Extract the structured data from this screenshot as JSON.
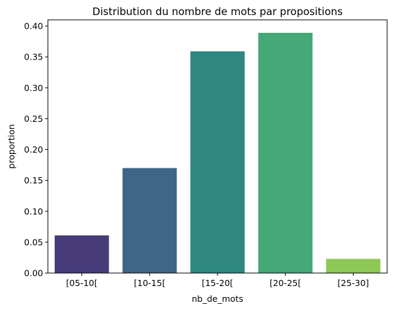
{
  "chart_data": {
    "type": "bar",
    "title": "Distribution du nombre de mots par propositions",
    "xlabel": "nb_de_mots",
    "ylabel": "proportion",
    "categories": [
      "[05-10[",
      "[10-15[",
      "[15-20[",
      "[20-25[",
      "[25-30]"
    ],
    "values": [
      0.061,
      0.17,
      0.359,
      0.389,
      0.023
    ],
    "colors": [
      "#483d7a",
      "#3f6687",
      "#2e8780",
      "#46a877",
      "#8dc756"
    ],
    "ylim": [
      0,
      0.41
    ],
    "yticks": [
      0.0,
      0.05,
      0.1,
      0.15,
      0.2,
      0.25,
      0.3,
      0.35,
      0.4
    ],
    "ytick_labels": [
      "0.00",
      "0.05",
      "0.10",
      "0.15",
      "0.20",
      "0.25",
      "0.30",
      "0.35",
      "0.40"
    ],
    "grid": false,
    "legend": "none"
  }
}
